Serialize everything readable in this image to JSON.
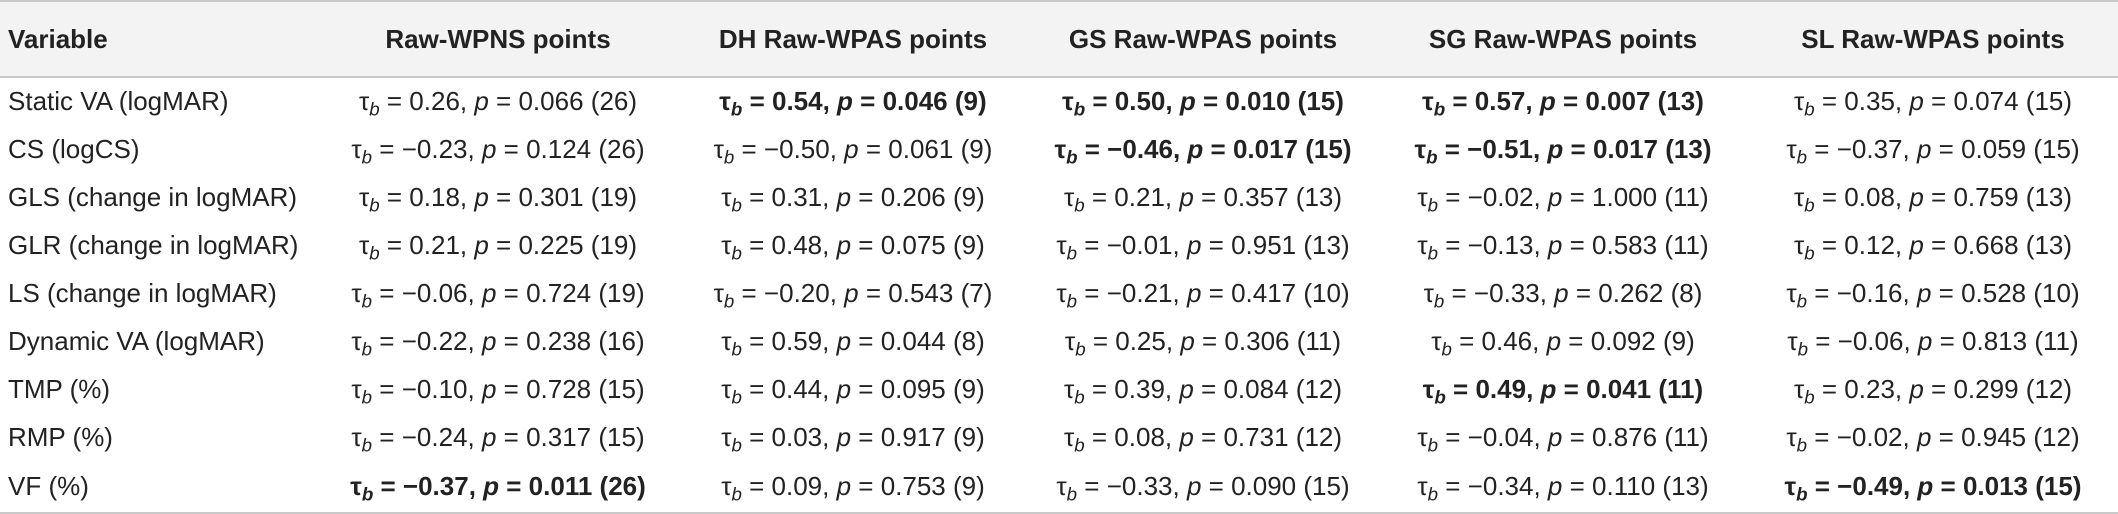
{
  "table": {
    "headers": [
      "Variable",
      "Raw-WPNS points",
      "DH Raw-WPAS points",
      "GS Raw-WPAS points",
      "SG Raw-WPAS points",
      "SL Raw-WPAS points"
    ],
    "rows": [
      {
        "variable": "Static VA (logMAR)",
        "cells": [
          {
            "tau": "0.26",
            "p": "0.066",
            "n": "26",
            "bold": false
          },
          {
            "tau": "0.54",
            "p": "0.046",
            "n": "9",
            "bold": true
          },
          {
            "tau": "0.50",
            "p": "0.010",
            "n": "15",
            "bold": true
          },
          {
            "tau": "0.57",
            "p": "0.007",
            "n": "13",
            "bold": true
          },
          {
            "tau": "0.35",
            "p": "0.074",
            "n": "15",
            "bold": false
          }
        ]
      },
      {
        "variable": "CS (logCS)",
        "cells": [
          {
            "tau": "−0.23",
            "p": "0.124",
            "n": "26",
            "bold": false
          },
          {
            "tau": "−0.50",
            "p": "0.061",
            "n": "9",
            "bold": false
          },
          {
            "tau": "−0.46",
            "p": "0.017",
            "n": "15",
            "bold": true
          },
          {
            "tau": "−0.51",
            "p": "0.017",
            "n": "13",
            "bold": true
          },
          {
            "tau": "−0.37",
            "p": "0.059",
            "n": "15",
            "bold": false
          }
        ]
      },
      {
        "variable": "GLS (change in logMAR)",
        "cells": [
          {
            "tau": "0.18",
            "p": "0.301",
            "n": "19",
            "bold": false
          },
          {
            "tau": "0.31",
            "p": "0.206",
            "n": "9",
            "bold": false
          },
          {
            "tau": "0.21",
            "p": "0.357",
            "n": "13",
            "bold": false
          },
          {
            "tau": "−0.02",
            "p": "1.000",
            "n": "11",
            "bold": false
          },
          {
            "tau": "0.08",
            "p": "0.759",
            "n": "13",
            "bold": false
          }
        ]
      },
      {
        "variable": "GLR (change in logMAR)",
        "cells": [
          {
            "tau": "0.21",
            "p": "0.225",
            "n": "19",
            "bold": false
          },
          {
            "tau": "0.48",
            "p": "0.075",
            "n": "9",
            "bold": false
          },
          {
            "tau": "−0.01",
            "p": "0.951",
            "n": "13",
            "bold": false
          },
          {
            "tau": "−0.13",
            "p": "0.583",
            "n": "11",
            "bold": false
          },
          {
            "tau": "0.12",
            "p": "0.668",
            "n": "13",
            "bold": false
          }
        ]
      },
      {
        "variable": "LS (change in logMAR)",
        "cells": [
          {
            "tau": "−0.06",
            "p": "0.724",
            "n": "19",
            "bold": false
          },
          {
            "tau": "−0.20",
            "p": "0.543",
            "n": "7",
            "bold": false
          },
          {
            "tau": "−0.21",
            "p": "0.417",
            "n": "10",
            "bold": false
          },
          {
            "tau": "−0.33",
            "p": "0.262",
            "n": "8",
            "bold": false
          },
          {
            "tau": "−0.16",
            "p": "0.528",
            "n": "10",
            "bold": false
          }
        ]
      },
      {
        "variable": "Dynamic VA (logMAR)",
        "cells": [
          {
            "tau": "−0.22",
            "p": "0.238",
            "n": "16",
            "bold": false
          },
          {
            "tau": "0.59",
            "p": "0.044",
            "n": "8",
            "bold": false
          },
          {
            "tau": "0.25",
            "p": "0.306",
            "n": "11",
            "bold": false
          },
          {
            "tau": "0.46",
            "p": "0.092",
            "n": "9",
            "bold": false
          },
          {
            "tau": "−0.06",
            "p": "0.813",
            "n": "11",
            "bold": false
          }
        ]
      },
      {
        "variable": "TMP (%)",
        "cells": [
          {
            "tau": "−0.10",
            "p": "0.728",
            "n": "15",
            "bold": false
          },
          {
            "tau": "0.44",
            "p": "0.095",
            "n": "9",
            "bold": false
          },
          {
            "tau": "0.39",
            "p": "0.084",
            "n": "12",
            "bold": false
          },
          {
            "tau": "0.49",
            "p": "0.041",
            "n": "11",
            "bold": true
          },
          {
            "tau": "0.23",
            "p": "0.299",
            "n": "12",
            "bold": false
          }
        ]
      },
      {
        "variable": "RMP (%)",
        "cells": [
          {
            "tau": "−0.24",
            "p": "0.317",
            "n": "15",
            "bold": false
          },
          {
            "tau": "0.03",
            "p": "0.917",
            "n": "9",
            "bold": false
          },
          {
            "tau": "0.08",
            "p": "0.731",
            "n": "12",
            "bold": false
          },
          {
            "tau": "−0.04",
            "p": "0.876",
            "n": "11",
            "bold": false
          },
          {
            "tau": "−0.02",
            "p": "0.945",
            "n": "12",
            "bold": false
          }
        ]
      },
      {
        "variable": "VF (%)",
        "cells": [
          {
            "tau": "−0.37",
            "p": "0.011",
            "n": "26",
            "bold": true
          },
          {
            "tau": "0.09",
            "p": "0.753",
            "n": "9",
            "bold": false
          },
          {
            "tau": "−0.33",
            "p": "0.090",
            "n": "15",
            "bold": false
          },
          {
            "tau": "−0.34",
            "p": "0.110",
            "n": "13",
            "bold": false
          },
          {
            "tau": "−0.49",
            "p": "0.013",
            "n": "15",
            "bold": true
          }
        ]
      }
    ]
  }
}
